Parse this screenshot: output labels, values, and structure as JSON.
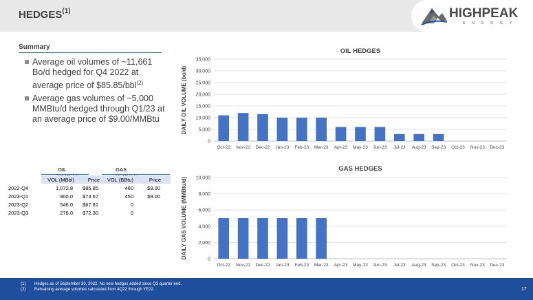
{
  "header": {
    "title": "HEDGES",
    "title_sup": "(1)"
  },
  "logo": {
    "name": "HIGHPEAK",
    "sub": "ENERGY"
  },
  "summary": {
    "heading": "Summary",
    "bullets": [
      {
        "text": "Average oil volumes of ~11,661 Bo/d hedged for Q4 2022 at average price of $85.85/bbl",
        "sup": "(2)"
      },
      {
        "text": "Average gas volumes of ~5,000 MMBtu/d hedged through Q1/23 at an average price of $9.00/MMBtu",
        "sup": ""
      }
    ]
  },
  "hedge_table": {
    "group_oil": "OIL HEDGES",
    "group_gas": "GAS HEDGES",
    "columns": [
      "VOL (MBbl)",
      "Price",
      "VOL (BBtu)",
      "Price"
    ],
    "rows": [
      {
        "period": "2022-Q4",
        "oil_vol": "1,072.8",
        "oil_price": "$85.85",
        "gas_vol": "460",
        "gas_price": "$9.00"
      },
      {
        "period": "2023-Q1",
        "oil_vol": "900.0",
        "oil_price": "$73.67",
        "gas_vol": "450",
        "gas_price": "$9.00"
      },
      {
        "period": "2023-Q2",
        "oil_vol": "546.0",
        "oil_price": "$67.81",
        "gas_vol": "0",
        "gas_price": ""
      },
      {
        "period": "2023-Q3",
        "oil_vol": "276.0",
        "oil_price": "$72.30",
        "gas_vol": "0",
        "gas_price": ""
      }
    ]
  },
  "chart_data": [
    {
      "type": "bar",
      "title": "OIL HEDGES",
      "ylabel": "DAILY OIL VOLUME (bo/d)",
      "xlabel": "",
      "categories": [
        "Oct-22",
        "Nov-22",
        "Dec-22",
        "Jan-23",
        "Feb-23",
        "Mar-23",
        "Apr-23",
        "May-23",
        "Jun-23",
        "Jul-23",
        "Aug-23",
        "Sep-23",
        "Oct-23",
        "Nov-23",
        "Dec-23"
      ],
      "values": [
        11000,
        12000,
        11500,
        10000,
        10000,
        10000,
        6000,
        6000,
        6000,
        3000,
        3000,
        3000,
        0,
        0,
        0
      ],
      "ylim": [
        0,
        35000
      ],
      "yticks": [
        "0",
        "5,000",
        "10,000",
        "15,000",
        "20,000",
        "25,000",
        "30,000",
        "35,000"
      ],
      "color": "#4472c4",
      "grid": true
    },
    {
      "type": "bar",
      "title": "GAS HEDGES",
      "ylabel": "DAILY GAS VOLUME (MMBtu/d)",
      "xlabel": "",
      "categories": [
        "Oct-22",
        "Nov-22",
        "Dec-22",
        "Jan-23",
        "Feb-23",
        "Mar-23",
        "Apr-23",
        "May-23",
        "Jun-23",
        "Jul-23",
        "Aug-23",
        "Sep-23",
        "Oct-23",
        "Nov-23",
        "Dec-23"
      ],
      "values": [
        5000,
        5000,
        5000,
        5000,
        5000,
        5000,
        0,
        0,
        0,
        0,
        0,
        0,
        0,
        0,
        0
      ],
      "ylim": [
        0,
        10000
      ],
      "yticks": [
        "0",
        "2,000",
        "4,000",
        "6,000",
        "8,000",
        "10,000"
      ],
      "color": "#4472c4",
      "grid": true
    }
  ],
  "footnotes": [
    {
      "num": "(1)",
      "text": "Hedges as of September 30, 2022. No new hedges added since Q3 quarter end."
    },
    {
      "num": "(2)",
      "text": "Remaining average volumes calculated from 4Q22 through YE22."
    }
  ],
  "page_number": "17"
}
